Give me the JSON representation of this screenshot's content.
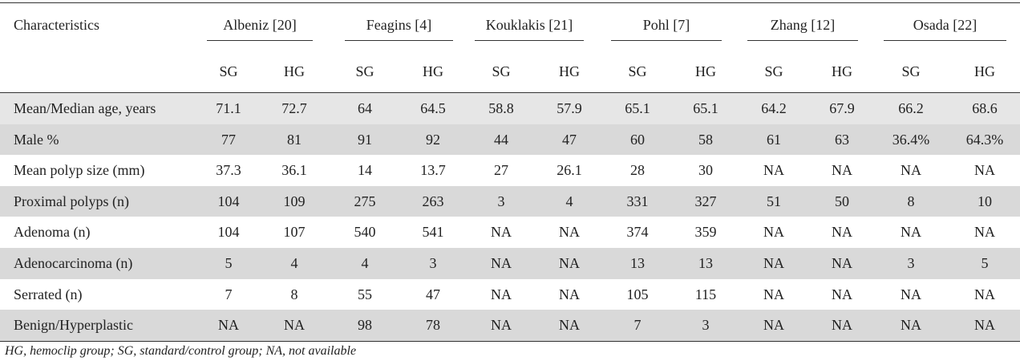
{
  "table": {
    "header": {
      "first": "Characteristics",
      "groups": [
        "Albeniz [20]",
        "Feagins [4]",
        "Kouklakis [21]",
        "Pohl [7]",
        "Zhang [12]",
        "Osada [22]"
      ],
      "subheaders": [
        "SG",
        "HG",
        "SG",
        "HG",
        "SG",
        "HG",
        "SG",
        "HG",
        "SG",
        "HG",
        "SG",
        "HG"
      ]
    },
    "rows": [
      [
        "Mean/Median age, years",
        "71.1",
        "72.7",
        "64",
        "64.5",
        "58.8",
        "57.9",
        "65.1",
        "65.1",
        "64.2",
        "67.9",
        "66.2",
        "68.6"
      ],
      [
        "Male %",
        "77",
        "81",
        "91",
        "92",
        "44",
        "47",
        "60",
        "58",
        "61",
        "63",
        "36.4%",
        "64.3%"
      ],
      [
        "Mean polyp size (mm)",
        "37.3",
        "36.1",
        "14",
        "13.7",
        "27",
        "26.1",
        "28",
        "30",
        "NA",
        "NA",
        "NA",
        "NA"
      ],
      [
        "Proximal polyps (n)",
        "104",
        "109",
        "275",
        "263",
        "3",
        "4",
        "331",
        "327",
        "51",
        "50",
        "8",
        "10"
      ],
      [
        "Adenoma (n)",
        "104",
        "107",
        "540",
        "541",
        "NA",
        "NA",
        "374",
        "359",
        "NA",
        "NA",
        "NA",
        "NA"
      ],
      [
        "Adenocarcinoma (n)",
        "5",
        "4",
        "4",
        "3",
        "NA",
        "NA",
        "13",
        "13",
        "NA",
        "NA",
        "3",
        "5"
      ],
      [
        "Serrated (n)",
        "7",
        "8",
        "55",
        "47",
        "NA",
        "NA",
        "105",
        "115",
        "NA",
        "NA",
        "NA",
        "NA"
      ],
      [
        "Benign/Hyperplastic",
        "NA",
        "NA",
        "98",
        "78",
        "NA",
        "NA",
        "7",
        "3",
        "NA",
        "NA",
        "NA",
        "NA"
      ]
    ],
    "footnote": "HG, hemoclip group; SG, standard/control group; NA, not available"
  }
}
